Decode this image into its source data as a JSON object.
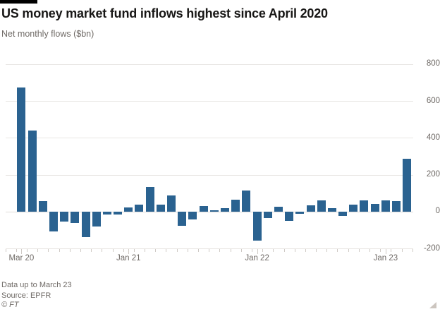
{
  "header": {
    "title": "US money market fund inflows highest since April 2020",
    "subtitle": "Net monthly flows ($bn)"
  },
  "footer": {
    "note": "Data up to March 23",
    "source": "Source: EPFR",
    "copyright": "© FT"
  },
  "colors": {
    "bar": "#2a6290",
    "grid": "#e8e6e3",
    "axis_text": "#6f6a66",
    "title_text": "#181716",
    "top_rule": "#000000",
    "background": "#ffffff"
  },
  "chart_data": {
    "type": "bar",
    "title": "US money market fund inflows highest since April 2020",
    "subtitle": "Net monthly flows ($bn)",
    "ylabel": "Net monthly flows ($bn)",
    "xlabel": "",
    "x": [
      "Mar 2020",
      "Apr 2020",
      "May 2020",
      "Jun 2020",
      "Jul 2020",
      "Aug 2020",
      "Sep 2020",
      "Oct 2020",
      "Nov 2020",
      "Dec 2020",
      "Jan 2021",
      "Feb 2021",
      "Mar 2021",
      "Apr 2021",
      "May 2021",
      "Jun 2021",
      "Jul 2021",
      "Aug 2021",
      "Sep 2021",
      "Oct 2021",
      "Nov 2021",
      "Dec 2021",
      "Jan 2022",
      "Feb 2022",
      "Mar 2022",
      "Apr 2022",
      "May 2022",
      "Jun 2022",
      "Jul 2022",
      "Aug 2022",
      "Sep 2022",
      "Oct 2022",
      "Nov 2022",
      "Dec 2022",
      "Jan 2023",
      "Feb 2023",
      "Mar 2023"
    ],
    "values": [
      675,
      440,
      57,
      -108,
      -51,
      -61,
      -137,
      -79,
      -15,
      -15,
      23,
      38,
      134,
      41,
      88,
      -76,
      -42,
      33,
      9,
      22,
      66,
      115,
      -155,
      -32,
      28,
      -50,
      -10,
      34,
      64,
      22,
      -23,
      41,
      61,
      45,
      62,
      60,
      287
    ],
    "ylim": [
      -200,
      800
    ],
    "yticks": [
      800,
      600,
      400,
      200,
      0,
      -200
    ],
    "ytick_labels": [
      "800",
      "600",
      "400",
      "200",
      "0",
      "-200"
    ],
    "xtick_labels": [
      "Mar 20",
      "Jan 21",
      "Jan 22",
      "Jan 23"
    ],
    "xtick_indices": [
      0,
      10,
      22,
      34
    ],
    "grid": "horizontal",
    "axis_side": "right",
    "legend": "none"
  }
}
